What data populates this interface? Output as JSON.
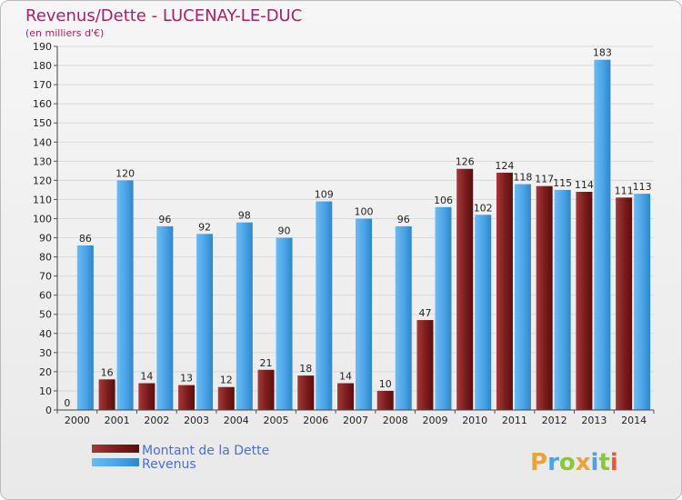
{
  "chart_data": {
    "type": "bar",
    "title": "Revenus/Dette - LUCENAY-LE-DUC",
    "subtitle": "(en milliers d'€)",
    "categories": [
      "2000",
      "2001",
      "2002",
      "2003",
      "2004",
      "2005",
      "2006",
      "2007",
      "2008",
      "2009",
      "2010",
      "2011",
      "2012",
      "2013",
      "2014"
    ],
    "series": [
      {
        "name": "Montant de la Dette",
        "color": "#7a1c1c",
        "values": [
          0,
          16,
          14,
          13,
          12,
          21,
          18,
          14,
          10,
          47,
          126,
          124,
          117,
          114,
          111
        ]
      },
      {
        "name": "Revenus",
        "color": "#4aa3e6",
        "values": [
          86,
          120,
          96,
          92,
          98,
          90,
          109,
          100,
          96,
          106,
          102,
          118,
          115,
          183,
          113
        ]
      }
    ],
    "ylim": [
      0,
      190
    ],
    "ytick_step": 10,
    "grid": true,
    "legend_placement": "bottom-left"
  },
  "logo": {
    "text": "Proxiti"
  }
}
